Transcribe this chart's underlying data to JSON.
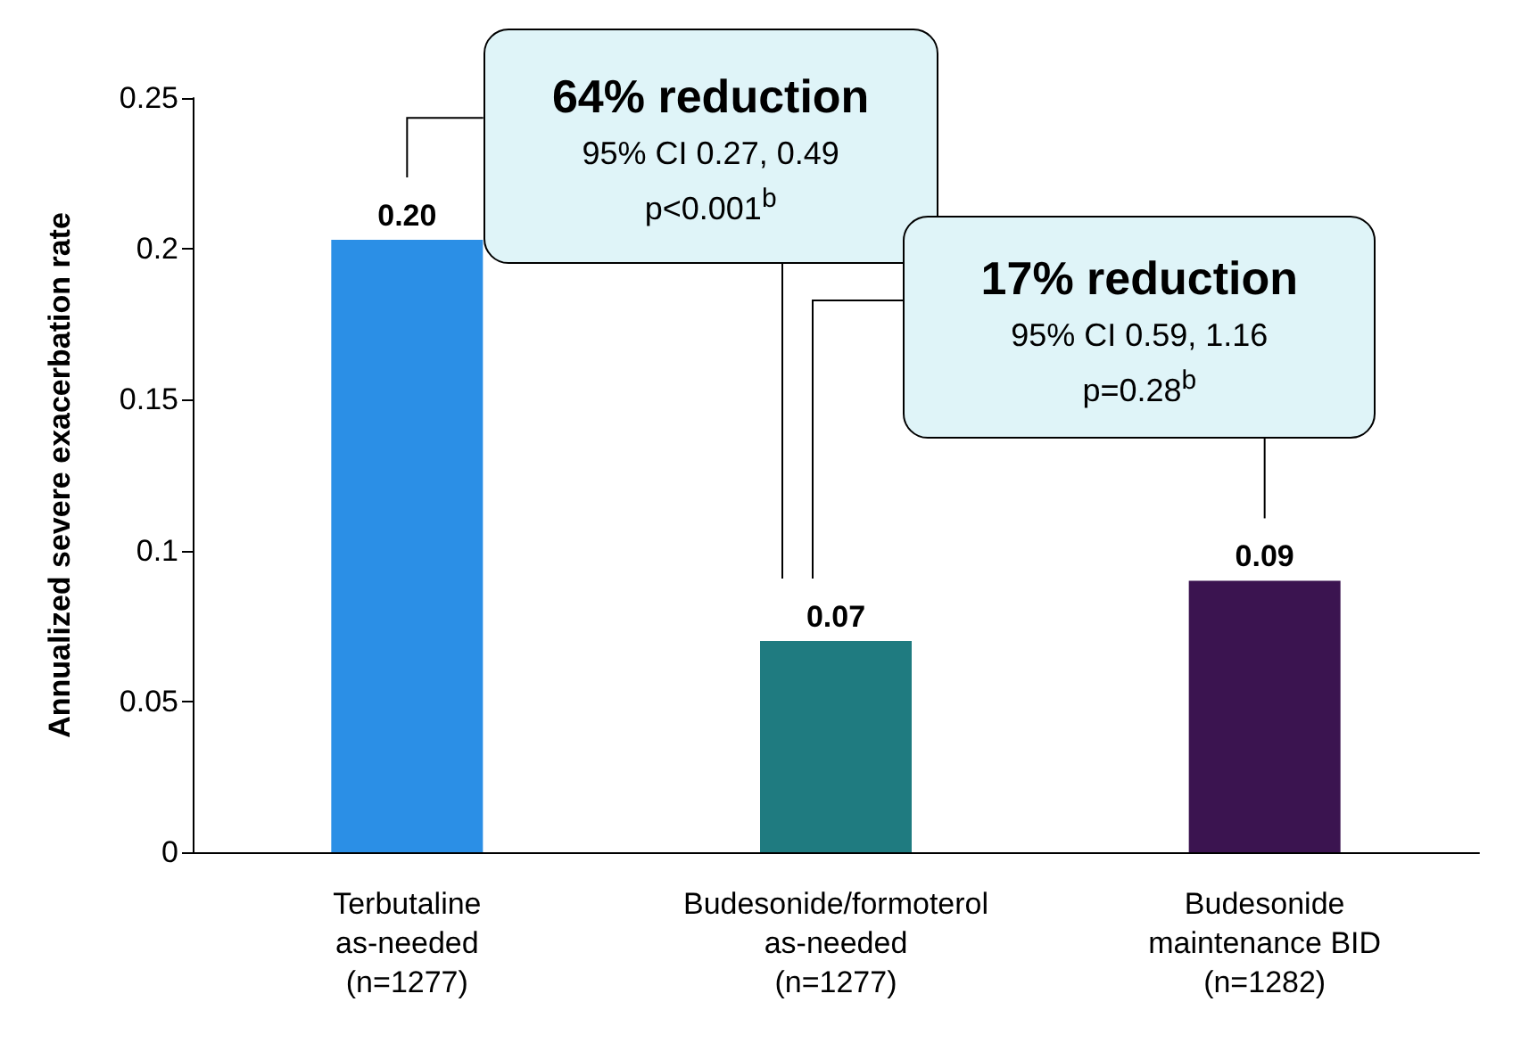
{
  "chart_data": {
    "type": "bar",
    "ylabel": "Annualized severe exacerbation rate",
    "categories": [
      "Terbutaline\nas-needed\n(n=1277)",
      "Budesonide/formoterol\nas-needed\n(n=1277)",
      "Budesonide\nmaintenance BID\n(n=1282)"
    ],
    "values": [
      0.203,
      0.07,
      0.09
    ],
    "colors": [
      "#2b8fe6",
      "#1f7b80",
      "#3b1450"
    ],
    "value_labels": [
      "0.20",
      "0.07",
      "0.09"
    ],
    "ylim": [
      0,
      0.25
    ],
    "yticks": [
      0,
      0.05,
      0.1,
      0.15,
      0.2,
      0.25
    ],
    "grid": false,
    "annotations": [
      "64% reduction\n95% CI 0.27, 0.49\np<0.001$^{b}$",
      "17% reduction\n95% CI 0.59, 1.16\np=0.28$^{b}$"
    ]
  }
}
